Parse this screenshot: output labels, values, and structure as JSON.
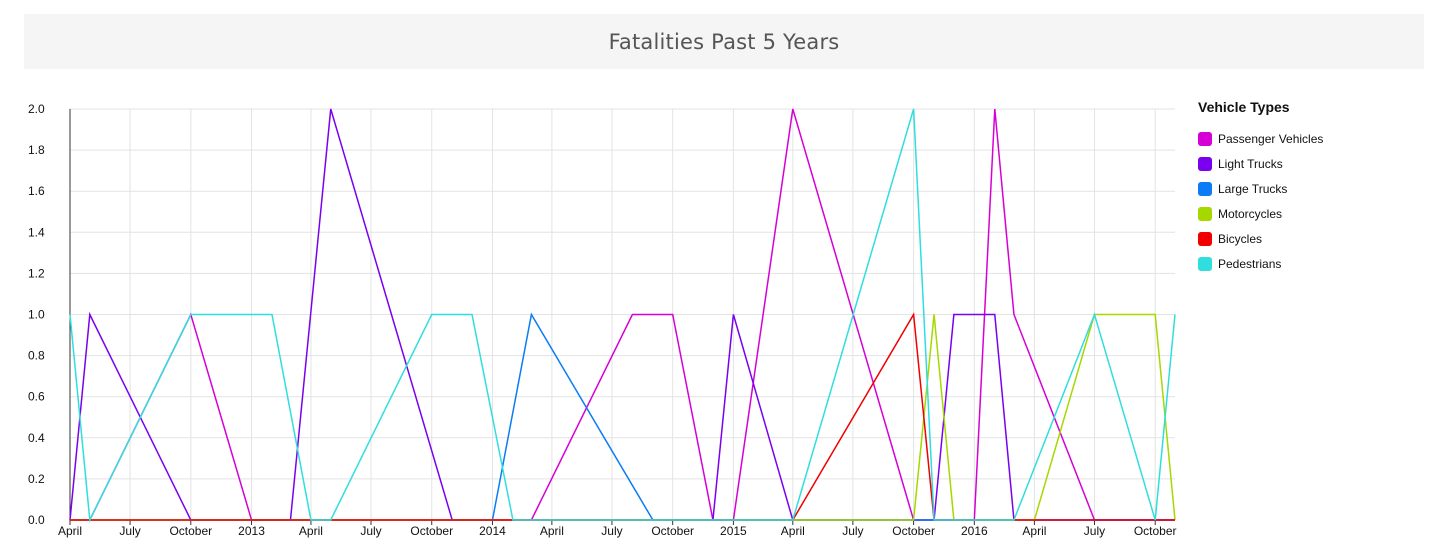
{
  "title": "Fatalities Past 5 Years",
  "legend": {
    "title": "Vehicle Types",
    "items": [
      {
        "label": "Passenger Vehicles",
        "color": "#d600d6"
      },
      {
        "label": "Light Trucks",
        "color": "#7a00f0"
      },
      {
        "label": "Large Trucks",
        "color": "#0a7cf5"
      },
      {
        "label": "Motorcycles",
        "color": "#a6d800"
      },
      {
        "label": "Bicycles",
        "color": "#f00000"
      },
      {
        "label": "Pedestrians",
        "color": "#30dede"
      }
    ]
  },
  "chart_data": {
    "type": "line",
    "title": "Fatalities Past 5 Years",
    "xlabel": "",
    "ylabel": "",
    "x_range": [
      "2012-04-01",
      "2016-10-31"
    ],
    "ylim": [
      0,
      2
    ],
    "grid": true,
    "legend_position": "right",
    "y_ticks": [
      "0.0",
      "0.2",
      "0.4",
      "0.6",
      "0.8",
      "1.0",
      "1.2",
      "1.4",
      "1.6",
      "1.8",
      "2.0"
    ],
    "x_ticks": [
      {
        "date": "2012-04-01",
        "label": "April"
      },
      {
        "date": "2012-07-01",
        "label": "July"
      },
      {
        "date": "2012-10-01",
        "label": "October"
      },
      {
        "date": "2013-01-01",
        "label": "2013"
      },
      {
        "date": "2013-04-01",
        "label": "April"
      },
      {
        "date": "2013-07-01",
        "label": "July"
      },
      {
        "date": "2013-10-01",
        "label": "October"
      },
      {
        "date": "2014-01-01",
        "label": "2014"
      },
      {
        "date": "2014-04-01",
        "label": "April"
      },
      {
        "date": "2014-07-01",
        "label": "July"
      },
      {
        "date": "2014-10-01",
        "label": "October"
      },
      {
        "date": "2015-01-01",
        "label": "2015"
      },
      {
        "date": "2015-04-01",
        "label": "April"
      },
      {
        "date": "2015-07-01",
        "label": "July"
      },
      {
        "date": "2015-10-01",
        "label": "October"
      },
      {
        "date": "2016-01-01",
        "label": "2016"
      },
      {
        "date": "2016-04-01",
        "label": "April"
      },
      {
        "date": "2016-07-01",
        "label": "July"
      },
      {
        "date": "2016-10-01",
        "label": "October"
      }
    ],
    "series": [
      {
        "name": "Passenger Vehicles",
        "color": "#d600d6",
        "points": [
          [
            "2012-04-01",
            0
          ],
          [
            "2012-05-01",
            0
          ],
          [
            "2012-10-01",
            1
          ],
          [
            "2013-01-01",
            0
          ],
          [
            "2014-02-01",
            0
          ],
          [
            "2014-03-01",
            0
          ],
          [
            "2014-08-01",
            1
          ],
          [
            "2014-10-01",
            1
          ],
          [
            "2014-12-01",
            0
          ],
          [
            "2015-01-01",
            0
          ],
          [
            "2015-04-01",
            2
          ],
          [
            "2015-10-01",
            0
          ],
          [
            "2016-01-01",
            0
          ],
          [
            "2016-02-01",
            2
          ],
          [
            "2016-03-01",
            1
          ],
          [
            "2016-07-01",
            0
          ],
          [
            "2016-10-31",
            0
          ]
        ]
      },
      {
        "name": "Light Trucks",
        "color": "#7a00f0",
        "points": [
          [
            "2012-04-01",
            0
          ],
          [
            "2012-05-01",
            1
          ],
          [
            "2012-10-01",
            0
          ],
          [
            "2013-03-01",
            0
          ],
          [
            "2013-05-01",
            2
          ],
          [
            "2013-11-01",
            0
          ],
          [
            "2014-12-01",
            0
          ],
          [
            "2015-01-01",
            1
          ],
          [
            "2015-04-01",
            0
          ],
          [
            "2015-11-01",
            0
          ],
          [
            "2015-12-01",
            1
          ],
          [
            "2016-02-01",
            1
          ],
          [
            "2016-03-01",
            0
          ],
          [
            "2016-10-31",
            0
          ]
        ]
      },
      {
        "name": "Large Trucks",
        "color": "#0a7cf5",
        "points": [
          [
            "2012-04-01",
            0
          ],
          [
            "2014-01-01",
            0
          ],
          [
            "2014-03-01",
            1
          ],
          [
            "2014-09-01",
            0
          ],
          [
            "2016-10-31",
            0
          ]
        ]
      },
      {
        "name": "Motorcycles",
        "color": "#a6d800",
        "points": [
          [
            "2012-04-01",
            0
          ],
          [
            "2015-10-01",
            0
          ],
          [
            "2015-11-01",
            1
          ],
          [
            "2015-12-01",
            0
          ],
          [
            "2016-01-01",
            0
          ],
          [
            "2016-04-01",
            0
          ],
          [
            "2016-07-01",
            1
          ],
          [
            "2016-10-01",
            1
          ],
          [
            "2016-10-31",
            0
          ]
        ]
      },
      {
        "name": "Bicycles",
        "color": "#f00000",
        "points": [
          [
            "2012-04-01",
            0
          ],
          [
            "2015-04-01",
            0
          ],
          [
            "2015-10-01",
            1
          ],
          [
            "2015-11-01",
            0
          ],
          [
            "2016-10-31",
            0
          ]
        ]
      },
      {
        "name": "Pedestrians",
        "color": "#30dede",
        "points": [
          [
            "2012-04-01",
            1
          ],
          [
            "2012-05-01",
            0
          ],
          [
            "2012-10-01",
            1
          ],
          [
            "2013-02-01",
            1
          ],
          [
            "2013-04-01",
            0
          ],
          [
            "2013-05-01",
            0
          ],
          [
            "2013-10-01",
            1
          ],
          [
            "2013-12-01",
            1
          ],
          [
            "2014-02-01",
            0
          ],
          [
            "2015-04-01",
            0
          ],
          [
            "2015-10-01",
            2
          ],
          [
            "2015-11-01",
            0
          ],
          [
            "2016-03-01",
            0
          ],
          [
            "2016-07-01",
            1
          ],
          [
            "2016-10-01",
            0
          ],
          [
            "2016-10-31",
            1
          ]
        ]
      }
    ]
  }
}
